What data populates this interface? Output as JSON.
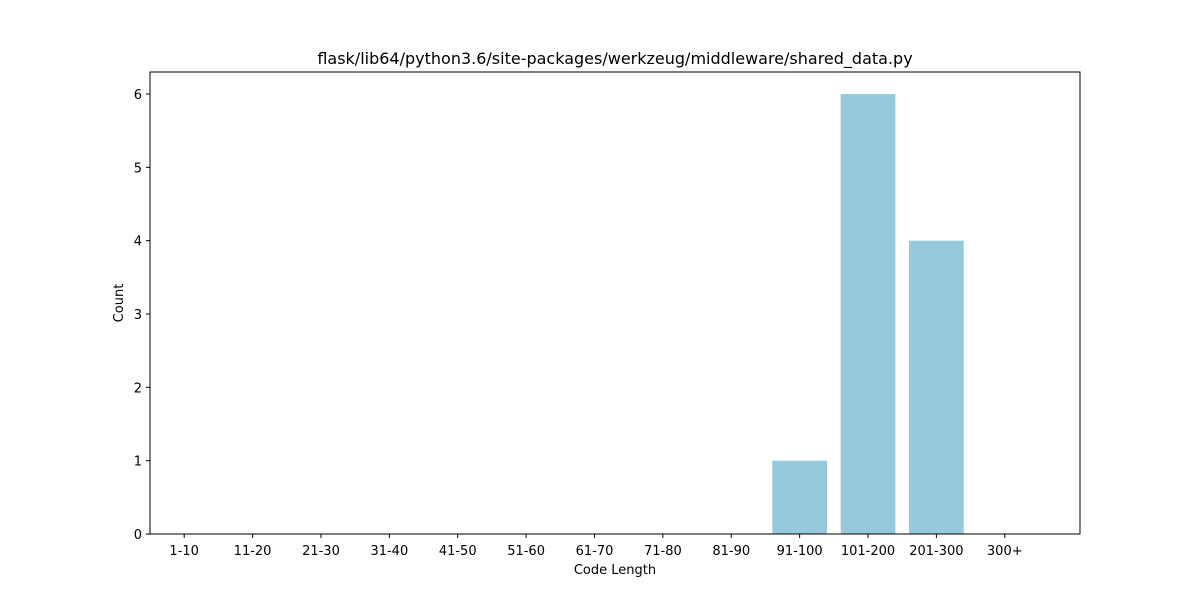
{
  "chart_data": {
    "type": "bar",
    "title": "flask/lib64/python3.6/site-packages/werkzeug/middleware/shared_data.py",
    "xlabel": "Code Length",
    "ylabel": "Count",
    "categories": [
      "1-10",
      "11-20",
      "21-30",
      "31-40",
      "41-50",
      "51-60",
      "61-70",
      "71-80",
      "81-90",
      "91-100",
      "101-200",
      "201-300",
      "300+"
    ],
    "values": [
      0,
      0,
      0,
      0,
      0,
      0,
      0,
      0,
      0,
      1,
      6,
      4,
      0
    ],
    "ylim": [
      0,
      6.3
    ],
    "yticks": [
      0,
      1,
      2,
      3,
      4,
      5,
      6
    ],
    "bar_color": "#96c9dc",
    "grid": false
  }
}
